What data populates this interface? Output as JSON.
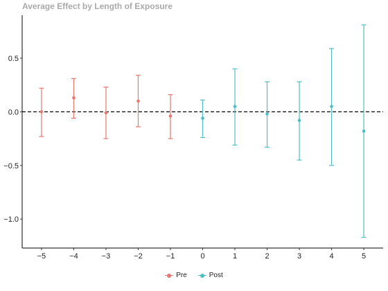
{
  "chart_data": {
    "type": "scatter",
    "title": "Average Effect by Length of Exposure",
    "xlabel": "",
    "ylabel": "",
    "x_ticks": [
      -5,
      -4,
      -3,
      -2,
      -1,
      0,
      1,
      2,
      3,
      4,
      5
    ],
    "x_tick_labels": [
      "−5",
      "−4",
      "−3",
      "−2",
      "−1",
      "0",
      "1",
      "2",
      "3",
      "4",
      "5"
    ],
    "y_ticks": [
      -1.0,
      -0.5,
      0.0,
      0.5
    ],
    "y_tick_labels": [
      "−1.0",
      "−0.5",
      "0.0",
      "0.5"
    ],
    "xlim": [
      -5.6,
      5.6
    ],
    "ylim": [
      -1.27,
      0.9
    ],
    "reference_line": {
      "y": 0,
      "style": "dashed"
    },
    "grid": false,
    "legend_position": "bottom",
    "series": [
      {
        "name": "Pre",
        "color": "#e8776f",
        "points": [
          {
            "x": -5,
            "y": 0.0,
            "lo": -0.23,
            "hi": 0.22
          },
          {
            "x": -4,
            "y": 0.13,
            "lo": -0.06,
            "hi": 0.31
          },
          {
            "x": -3,
            "y": -0.01,
            "lo": -0.25,
            "hi": 0.23
          },
          {
            "x": -2,
            "y": 0.1,
            "lo": -0.14,
            "hi": 0.34
          },
          {
            "x": -1,
            "y": -0.04,
            "lo": -0.25,
            "hi": 0.16
          }
        ]
      },
      {
        "name": "Post",
        "color": "#4fbfc6",
        "points": [
          {
            "x": 0,
            "y": -0.06,
            "lo": -0.24,
            "hi": 0.11
          },
          {
            "x": 1,
            "y": 0.05,
            "lo": -0.31,
            "hi": 0.4
          },
          {
            "x": 2,
            "y": -0.02,
            "lo": -0.33,
            "hi": 0.28
          },
          {
            "x": 3,
            "y": -0.08,
            "lo": -0.45,
            "hi": 0.28
          },
          {
            "x": 4,
            "y": 0.05,
            "lo": -0.5,
            "hi": 0.59
          },
          {
            "x": 5,
            "y": -0.18,
            "lo": -1.17,
            "hi": 0.81
          }
        ]
      }
    ]
  }
}
